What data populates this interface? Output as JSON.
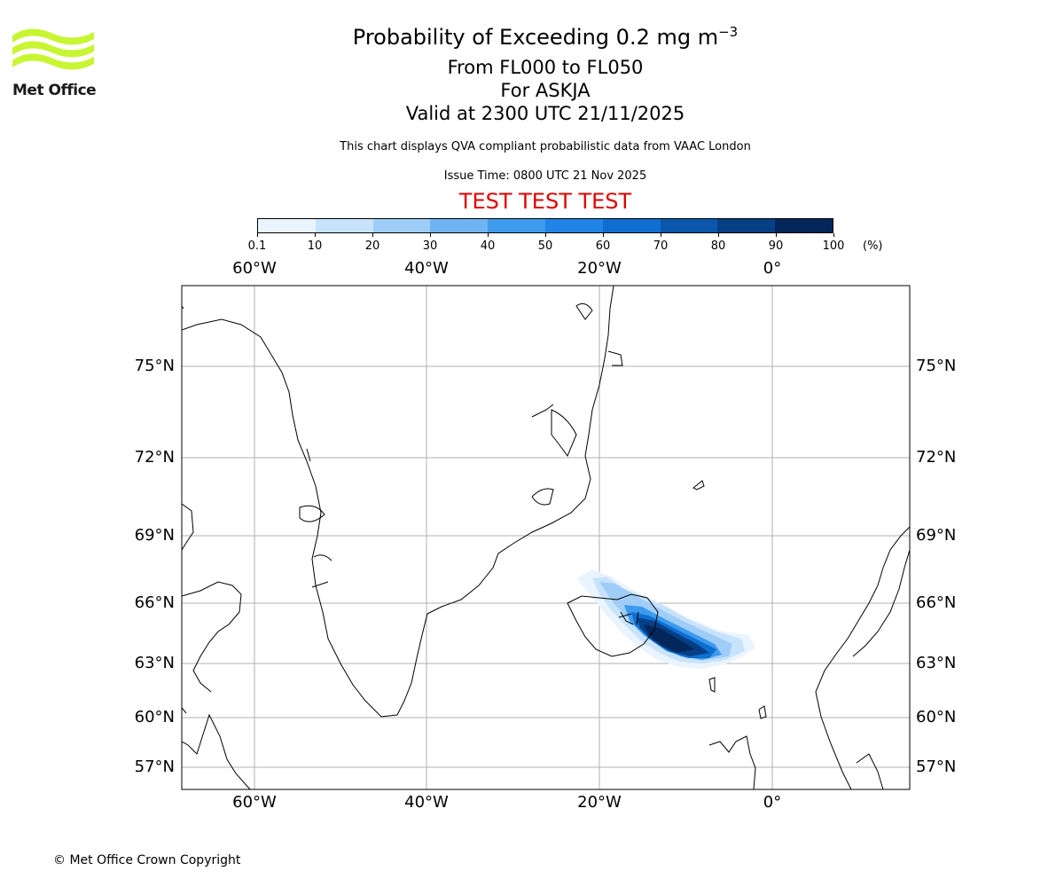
{
  "logo": {
    "text": "Met Office",
    "color": "#c8f532"
  },
  "title": {
    "line1": "Probability of Exceeding 0.2 mg m",
    "line1_exponent": "−3",
    "line2": "From FL000 to FL050",
    "line3": "For ASKJA",
    "line4": "Valid at 2300 UTC 21/11/2025"
  },
  "info_line": "This chart displays QVA compliant probabilistic data from VAAC London",
  "issue_time": "Issue Time: 0800 UTC 21 Nov 2025",
  "test_banner": "TEST TEST TEST",
  "colorbar": {
    "ticks": [
      "0.1",
      "10",
      "20",
      "30",
      "40",
      "50",
      "60",
      "70",
      "80",
      "90",
      "100"
    ],
    "unit": "(%)",
    "colors": [
      "#eaf4ff",
      "#c7e3fb",
      "#9fcdf7",
      "#6fb4f2",
      "#3d9aed",
      "#1f84e6",
      "#0f6fd0",
      "#0a57ad",
      "#073f86",
      "#03275a"
    ]
  },
  "map": {
    "lon_labels": [
      "60°W",
      "40°W",
      "20°W",
      "0°"
    ],
    "lat_labels": [
      "75°N",
      "72°N",
      "69°N",
      "66°N",
      "63°N",
      "60°N",
      "57°N"
    ],
    "grid_color": "#b0b0b0"
  },
  "copyright": "© Met Office Crown Copyright"
}
